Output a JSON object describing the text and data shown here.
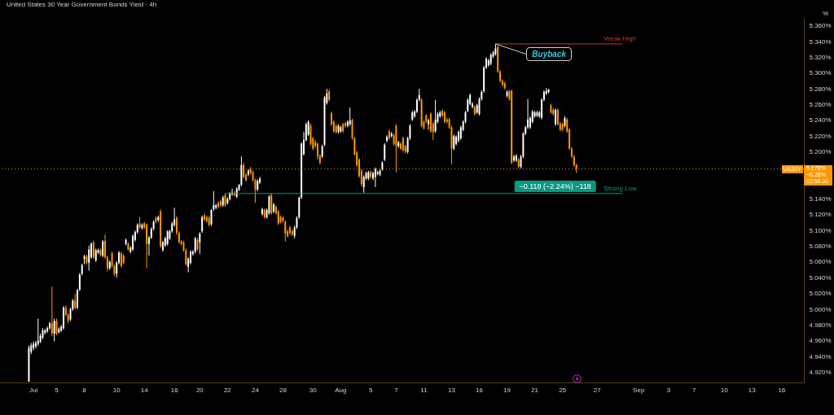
{
  "chart_data": {
    "type": "candlestick",
    "title": "United States 30 Year Government Bonds Yield · 4h",
    "ylabel": "%",
    "categories": [
      null,
      null,
      null,
      null,
      null,
      null,
      null,
      null,
      null,
      null,
      null,
      null,
      null,
      null,
      "Jul",
      null,
      null,
      null,
      null,
      null,
      null,
      null,
      null,
      null,
      "5",
      null,
      null,
      null,
      null,
      null,
      null,
      null,
      null,
      null,
      null,
      null,
      "8",
      null,
      null,
      null,
      null,
      null,
      null,
      null,
      null,
      null,
      null,
      null,
      null,
      null,
      "10",
      null,
      null,
      null,
      null,
      null,
      null,
      null,
      null,
      null,
      null,
      null,
      "14",
      null,
      null,
      null,
      null,
      null,
      null,
      null,
      null,
      null,
      null,
      null,
      null,
      "16",
      null,
      null,
      null,
      null,
      null,
      null,
      null,
      null,
      null,
      null,
      "20",
      null,
      null,
      null,
      null,
      null,
      null,
      null,
      null,
      null,
      null,
      null,
      "22",
      null,
      null,
      null,
      null,
      null,
      null,
      null,
      null,
      null,
      null,
      null,
      "24",
      null,
      null,
      null,
      null,
      null,
      null,
      null,
      null,
      null,
      null,
      null,
      "28",
      null,
      null,
      null,
      null,
      null,
      null,
      null,
      null,
      null,
      null,
      null,
      null,
      "30",
      null,
      null,
      null,
      null,
      null,
      null,
      null,
      null,
      null,
      null,
      null,
      "Aug",
      null,
      null,
      null,
      null,
      null,
      null,
      null,
      null,
      null,
      null,
      null,
      null,
      "5",
      null,
      null,
      null,
      null,
      null,
      null,
      null,
      null,
      null,
      null,
      "7",
      null,
      null,
      null,
      null,
      null,
      null,
      null,
      null,
      null,
      null,
      null,
      "11",
      null,
      null,
      null,
      null,
      null,
      null,
      null,
      null,
      null,
      null,
      null,
      "13",
      null,
      null,
      null,
      null,
      null,
      null,
      null,
      null,
      null,
      null,
      null,
      "16",
      null,
      null,
      null,
      null,
      null,
      null,
      null,
      null,
      null,
      null,
      null,
      "19",
      null,
      null,
      null,
      null,
      null,
      null,
      null,
      null,
      null,
      null,
      null,
      "21",
      null,
      null,
      null,
      null,
      null,
      null,
      null,
      null,
      null,
      null,
      null,
      "25",
      null,
      null,
      null,
      null,
      null,
      null,
      null,
      null,
      null,
      null,
      null,
      null,
      null,
      null,
      "27",
      null,
      null,
      null,
      null,
      null,
      null,
      null,
      null,
      null,
      null,
      null,
      null,
      null,
      null,
      null,
      null,
      null,
      "Sep",
      null,
      null,
      null,
      null,
      null,
      null,
      null,
      null,
      null,
      null,
      null,
      null,
      "3",
      null,
      null,
      null,
      null,
      null,
      null,
      null,
      null,
      null,
      null,
      "7",
      null,
      null,
      null,
      null,
      null,
      null,
      null,
      null,
      null,
      null,
      null,
      null,
      "10",
      null,
      null,
      null,
      null,
      null,
      null,
      null,
      null,
      null,
      null,
      null,
      "13",
      null,
      null,
      null,
      null,
      null,
      null,
      null,
      null,
      null,
      null,
      null,
      null,
      "16",
      null,
      null,
      null,
      null,
      null,
      null,
      null,
      null,
      null
    ],
    "ohlc": [
      null,
      null,
      null,
      null,
      null,
      null,
      null,
      null,
      null,
      null,
      null,
      null,
      [
        4.908,
        4.954,
        4.908,
        4.951
      ],
      [
        4.946,
        4.957,
        4.943,
        4.954
      ],
      [
        4.951,
        4.959,
        4.948,
        4.956
      ],
      [
        4.953,
        4.96,
        4.95,
        4.957
      ],
      [
        4.956,
        4.988,
        4.953,
        4.96
      ],
      [
        4.959,
        4.969,
        4.957,
        4.966
      ],
      [
        4.964,
        4.976,
        4.962,
        4.973
      ],
      [
        4.97,
        4.975,
        4.968,
        4.973
      ],
      [
        4.972,
        4.978,
        4.97,
        4.976
      ],
      [
        4.976,
        4.984,
        4.974,
        4.982
      ],
      [
        4.982,
        5.029,
        4.966,
        4.969
      ],
      [
        4.969,
        4.988,
        4.959,
        4.985
      ],
      [
        4.985,
        4.988,
        4.967,
        4.969
      ],
      [
        4.971,
        4.977,
        4.969,
        4.975
      ],
      [
        4.973,
        4.98,
        4.971,
        4.978
      ],
      [
        4.976,
        5.004,
        4.974,
        5.002
      ],
      [
        5.002,
        5.005,
        4.991,
        4.993
      ],
      [
        4.993,
        4.995,
        4.982,
        4.985
      ],
      [
        4.987,
        5.002,
        4.985,
        5.0
      ],
      [
        5.0,
        5.013,
        4.998,
        5.011
      ],
      [
        5.011,
        5.02,
        5.0,
        5.002
      ],
      [
        5.002,
        5.026,
        5.0,
        5.024
      ],
      [
        5.025,
        5.046,
        5.023,
        5.044
      ],
      [
        5.045,
        5.058,
        5.043,
        5.056
      ],
      [
        5.064,
        5.069,
        5.057,
        5.067
      ],
      [
        5.067,
        5.069,
        5.057,
        5.059
      ],
      [
        5.059,
        5.081,
        5.049,
        5.076
      ],
      [
        5.066,
        5.085,
        5.064,
        5.083
      ],
      [
        5.085,
        5.087,
        5.064,
        5.066
      ],
      [
        5.062,
        5.077,
        5.06,
        5.075
      ],
      [
        5.072,
        5.077,
        5.07,
        5.075
      ],
      [
        5.075,
        5.077,
        5.067,
        5.069
      ],
      [
        5.068,
        5.088,
        5.066,
        5.086
      ],
      [
        5.087,
        5.095,
        5.064,
        5.066
      ],
      [
        5.066,
        5.068,
        5.048,
        5.052
      ],
      [
        5.052,
        5.062,
        5.05,
        5.06
      ],
      [
        5.071,
        5.073,
        5.053,
        5.055
      ],
      [
        5.055,
        5.057,
        5.042,
        5.045
      ],
      [
        5.045,
        5.061,
        5.04,
        5.059
      ],
      [
        5.059,
        5.074,
        5.057,
        5.072
      ],
      [
        5.071,
        5.073,
        5.053,
        5.055
      ],
      [
        5.068,
        5.07,
        5.057,
        5.059
      ],
      [
        5.083,
        5.09,
        5.081,
        5.088
      ],
      [
        5.083,
        5.085,
        5.074,
        5.076
      ],
      [
        5.073,
        5.08,
        5.071,
        5.078
      ],
      [
        5.076,
        5.095,
        5.074,
        5.093
      ],
      [
        5.088,
        5.1,
        5.086,
        5.098
      ],
      [
        5.098,
        5.109,
        5.096,
        5.107
      ],
      [
        5.109,
        5.117,
        5.102,
        5.104
      ],
      [
        5.103,
        5.109,
        5.101,
        5.107
      ],
      [
        5.109,
        5.111,
        5.102,
        5.104
      ],
      [
        5.107,
        5.109,
        5.052,
        5.083
      ],
      [
        5.083,
        5.093,
        5.068,
        5.091
      ],
      [
        5.091,
        5.104,
        5.089,
        5.102
      ],
      [
        5.102,
        5.113,
        5.1,
        5.111
      ],
      [
        5.116,
        5.118,
        5.109,
        5.111
      ],
      [
        5.113,
        5.119,
        5.111,
        5.117
      ],
      [
        5.124,
        5.127,
        5.078,
        5.08
      ],
      [
        5.075,
        5.087,
        5.073,
        5.085
      ],
      [
        5.081,
        5.092,
        5.079,
        5.09
      ],
      [
        5.083,
        5.1,
        5.081,
        5.099
      ],
      [
        5.09,
        5.101,
        5.088,
        5.099
      ],
      [
        5.099,
        5.111,
        5.097,
        5.109
      ],
      [
        5.107,
        5.129,
        5.105,
        5.114
      ],
      [
        5.116,
        5.118,
        5.094,
        5.097
      ],
      [
        5.097,
        5.099,
        5.083,
        5.085
      ],
      [
        5.086,
        5.088,
        5.081,
        5.083
      ],
      [
        5.085,
        5.087,
        5.073,
        5.075
      ],
      [
        5.075,
        5.077,
        5.055,
        5.057
      ],
      [
        5.054,
        5.066,
        5.047,
        5.064
      ],
      [
        5.059,
        5.075,
        5.057,
        5.073
      ],
      [
        5.07,
        5.075,
        5.068,
        5.073
      ],
      [
        5.073,
        5.092,
        5.071,
        5.09
      ],
      [
        5.088,
        5.091,
        5.074,
        5.076
      ],
      [
        5.085,
        5.098,
        5.07,
        5.096
      ],
      [
        5.099,
        5.119,
        5.097,
        5.117
      ],
      [
        5.119,
        5.122,
        5.112,
        5.114
      ],
      [
        5.117,
        5.119,
        5.11,
        5.112
      ],
      [
        5.116,
        5.118,
        5.105,
        5.107
      ],
      [
        5.108,
        5.127,
        5.106,
        5.126
      ],
      [
        5.127,
        5.15,
        5.125,
        5.132
      ],
      [
        5.129,
        5.134,
        5.127,
        5.132
      ],
      [
        5.135,
        5.137,
        5.128,
        5.13
      ],
      [
        5.137,
        5.139,
        5.13,
        5.132
      ],
      [
        5.132,
        5.144,
        5.13,
        5.142
      ],
      [
        5.145,
        5.147,
        5.13,
        5.132
      ],
      [
        5.135,
        5.142,
        5.133,
        5.14
      ],
      [
        5.14,
        5.149,
        5.138,
        5.147
      ],
      [
        5.146,
        5.153,
        5.144,
        5.148
      ],
      [
        5.148,
        5.15,
        5.143,
        5.145
      ],
      [
        5.143,
        5.155,
        5.141,
        5.153
      ],
      [
        5.152,
        5.159,
        5.15,
        5.158
      ],
      [
        5.158,
        5.194,
        5.156,
        5.183
      ],
      [
        5.183,
        5.186,
        5.166,
        5.168
      ],
      [
        5.171,
        5.173,
        5.162,
        5.164
      ],
      [
        5.171,
        5.178,
        5.169,
        5.176
      ],
      [
        5.178,
        5.181,
        5.171,
        5.173
      ],
      [
        5.174,
        5.176,
        5.162,
        5.164
      ],
      [
        5.164,
        5.166,
        5.135,
        5.152
      ],
      [
        5.152,
        5.165,
        5.15,
        5.163
      ],
      [
        5.161,
        5.168,
        5.159,
        5.166
      ],
      [
        5.121,
        5.129,
        5.119,
        5.127
      ],
      [
        5.126,
        5.128,
        5.115,
        5.117
      ],
      [
        5.117,
        5.128,
        5.115,
        5.126
      ],
      [
        5.122,
        5.145,
        5.12,
        5.143
      ],
      [
        5.145,
        5.147,
        5.12,
        5.122
      ],
      [
        5.124,
        5.135,
        5.122,
        5.133
      ],
      [
        5.13,
        5.132,
        5.12,
        5.122
      ],
      [
        5.124,
        5.126,
        5.107,
        5.109
      ],
      [
        5.117,
        5.119,
        5.109,
        5.111
      ],
      [
        5.116,
        5.118,
        5.11,
        5.112
      ],
      [
        5.111,
        5.113,
        5.086,
        5.096
      ],
      [
        5.099,
        5.101,
        5.091,
        5.093
      ],
      [
        5.104,
        5.106,
        5.094,
        5.097
      ],
      [
        5.099,
        5.101,
        5.093,
        5.095
      ],
      [
        5.093,
        5.106,
        5.09,
        5.104
      ],
      [
        5.104,
        5.118,
        5.102,
        5.116
      ],
      [
        5.117,
        5.143,
        5.115,
        5.142
      ],
      [
        5.142,
        5.212,
        5.14,
        5.21
      ],
      [
        5.197,
        5.225,
        5.195,
        5.215
      ],
      [
        5.215,
        5.237,
        5.213,
        5.235
      ],
      [
        5.222,
        5.24,
        5.22,
        5.238
      ],
      [
        5.233,
        5.236,
        5.208,
        5.21
      ],
      [
        5.217,
        5.219,
        5.202,
        5.204
      ],
      [
        5.212,
        5.215,
        5.205,
        5.207
      ],
      [
        5.21,
        5.212,
        5.19,
        5.194
      ],
      [
        5.195,
        5.197,
        5.184,
        5.186
      ],
      [
        5.194,
        5.209,
        5.192,
        5.207
      ],
      [
        5.209,
        5.271,
        5.207,
        5.269
      ],
      [
        5.262,
        5.28,
        5.26,
        5.274
      ],
      [
        5.277,
        5.279,
        5.264,
        5.266
      ],
      [
        5.249,
        5.251,
        5.233,
        5.235
      ],
      [
        5.238,
        5.24,
        5.224,
        5.226
      ],
      [
        5.233,
        5.235,
        5.223,
        5.225
      ],
      [
        5.225,
        5.235,
        5.223,
        5.233
      ],
      [
        5.226,
        5.233,
        5.224,
        5.231
      ],
      [
        5.235,
        5.237,
        5.224,
        5.226
      ],
      [
        5.236,
        5.238,
        5.231,
        5.233
      ],
      [
        5.233,
        5.24,
        5.231,
        5.238
      ],
      [
        5.235,
        5.256,
        5.233,
        5.24
      ],
      [
        5.24,
        5.242,
        5.215,
        5.217
      ],
      [
        5.217,
        5.219,
        5.195,
        5.197
      ],
      [
        5.199,
        5.201,
        5.181,
        5.183
      ],
      [
        5.19,
        5.192,
        5.167,
        5.169
      ],
      [
        5.176,
        5.178,
        5.156,
        5.159
      ],
      [
        5.155,
        5.17,
        5.148,
        5.168
      ],
      [
        5.166,
        5.175,
        5.164,
        5.173
      ],
      [
        5.166,
        5.176,
        5.164,
        5.174
      ],
      [
        5.174,
        5.176,
        5.166,
        5.168
      ],
      [
        5.166,
        5.175,
        5.164,
        5.173
      ],
      [
        5.168,
        5.18,
        5.155,
        5.178
      ],
      [
        5.172,
        5.176,
        5.17,
        5.174
      ],
      [
        5.171,
        5.178,
        5.169,
        5.176
      ],
      [
        5.178,
        5.188,
        5.176,
        5.186
      ],
      [
        5.19,
        5.211,
        5.188,
        5.209
      ],
      [
        5.214,
        5.221,
        5.212,
        5.219
      ],
      [
        5.226,
        5.228,
        5.215,
        5.217
      ],
      [
        5.22,
        5.225,
        5.218,
        5.223
      ],
      [
        5.221,
        5.223,
        5.208,
        5.21
      ],
      [
        5.233,
        5.235,
        5.174,
        5.207
      ],
      [
        5.207,
        5.214,
        5.205,
        5.212
      ],
      [
        5.21,
        5.212,
        5.202,
        5.204
      ],
      [
        5.217,
        5.219,
        5.2,
        5.202
      ],
      [
        5.207,
        5.209,
        5.198,
        5.2
      ],
      [
        5.2,
        5.219,
        5.198,
        5.217
      ],
      [
        5.217,
        5.235,
        5.215,
        5.233
      ],
      [
        5.241,
        5.252,
        5.239,
        5.25
      ],
      [
        5.245,
        5.253,
        5.243,
        5.251
      ],
      [
        5.251,
        5.268,
        5.249,
        5.266
      ],
      [
        5.266,
        5.28,
        5.264,
        5.272
      ],
      [
        5.266,
        5.268,
        5.231,
        5.233
      ],
      [
        5.238,
        5.24,
        5.228,
        5.23
      ],
      [
        5.246,
        5.248,
        5.236,
        5.238
      ],
      [
        5.235,
        5.242,
        5.228,
        5.24
      ],
      [
        5.248,
        5.25,
        5.224,
        5.226
      ],
      [
        5.236,
        5.238,
        5.215,
        5.225
      ],
      [
        5.226,
        5.266,
        5.224,
        5.241
      ],
      [
        5.238,
        5.25,
        5.236,
        5.248
      ],
      [
        5.245,
        5.252,
        5.243,
        5.25
      ],
      [
        5.252,
        5.254,
        5.244,
        5.246
      ],
      [
        5.25,
        5.252,
        5.236,
        5.238
      ],
      [
        5.241,
        5.243,
        5.236,
        5.238
      ],
      [
        5.241,
        5.243,
        5.229,
        5.231
      ],
      [
        5.231,
        5.233,
        5.184,
        5.204
      ],
      [
        5.204,
        5.222,
        5.202,
        5.22
      ],
      [
        5.21,
        5.221,
        5.208,
        5.219
      ],
      [
        5.214,
        5.227,
        5.212,
        5.225
      ],
      [
        5.217,
        5.233,
        5.215,
        5.231
      ],
      [
        5.228,
        5.24,
        5.226,
        5.238
      ],
      [
        5.238,
        5.252,
        5.236,
        5.25
      ],
      [
        5.252,
        5.268,
        5.25,
        5.266
      ],
      [
        5.261,
        5.274,
        5.259,
        5.272
      ],
      [
        5.257,
        5.263,
        5.255,
        5.261
      ],
      [
        5.257,
        5.259,
        5.246,
        5.248
      ],
      [
        5.25,
        5.261,
        5.248,
        5.259
      ],
      [
        5.248,
        5.269,
        5.246,
        5.267
      ],
      [
        5.267,
        5.278,
        5.265,
        5.276
      ],
      [
        5.277,
        5.309,
        5.275,
        5.307
      ],
      [
        5.307,
        5.32,
        5.305,
        5.318
      ],
      [
        5.31,
        5.318,
        5.308,
        5.316
      ],
      [
        5.312,
        5.325,
        5.31,
        5.323
      ],
      [
        5.321,
        5.328,
        5.319,
        5.326
      ],
      [
        5.324,
        5.337,
        5.322,
        5.331
      ],
      [
        5.333,
        5.335,
        5.3,
        5.302
      ],
      [
        5.302,
        5.304,
        5.288,
        5.29
      ],
      [
        5.29,
        5.292,
        5.283,
        5.285
      ],
      [
        5.287,
        5.289,
        5.279,
        5.281
      ],
      [
        5.271,
        5.278,
        5.269,
        5.276
      ],
      [
        5.277,
        5.279,
        5.265,
        5.267
      ],
      [
        5.277,
        5.279,
        5.184,
        5.186
      ],
      [
        5.189,
        5.196,
        5.187,
        5.194
      ],
      [
        5.189,
        5.197,
        5.187,
        5.195
      ],
      [
        5.19,
        5.192,
        5.179,
        5.181
      ],
      [
        5.181,
        5.196,
        5.179,
        5.194
      ],
      [
        5.194,
        5.225,
        5.192,
        5.223
      ],
      [
        5.223,
        5.233,
        5.221,
        5.231
      ],
      [
        5.231,
        5.267,
        5.229,
        5.241
      ],
      [
        5.231,
        5.245,
        5.229,
        5.243
      ],
      [
        5.238,
        5.253,
        5.236,
        5.251
      ],
      [
        5.245,
        5.252,
        5.243,
        5.25
      ],
      [
        5.246,
        5.252,
        5.244,
        5.25
      ],
      [
        5.245,
        5.252,
        5.243,
        5.25
      ],
      [
        5.243,
        5.268,
        5.241,
        5.266
      ],
      [
        5.266,
        5.278,
        5.264,
        5.276
      ],
      [
        5.274,
        5.281,
        5.272,
        5.277
      ],
      [
        5.276,
        5.28,
        5.274,
        5.279
      ],
      [
        5.259,
        5.261,
        5.248,
        5.25
      ],
      [
        5.253,
        5.255,
        5.246,
        5.248
      ],
      [
        5.235,
        5.255,
        5.233,
        5.253
      ],
      [
        5.253,
        5.255,
        5.233,
        5.235
      ],
      [
        5.236,
        5.238,
        5.226,
        5.228
      ],
      [
        5.235,
        5.237,
        5.226,
        5.228
      ],
      [
        5.233,
        5.245,
        5.231,
        5.243
      ],
      [
        5.241,
        5.243,
        5.224,
        5.226
      ],
      [
        5.228,
        5.23,
        5.202,
        5.204
      ],
      [
        5.204,
        5.206,
        5.192,
        5.194
      ],
      [
        5.194,
        5.196,
        5.181,
        5.183
      ],
      [
        5.183,
        5.185,
        5.173,
        5.178
      ],
      null,
      null,
      null,
      null,
      null,
      null,
      null,
      null,
      null,
      null,
      null,
      null,
      null,
      null,
      null,
      null,
      null,
      null,
      null,
      null,
      null,
      null,
      null,
      null,
      null,
      null,
      null,
      null,
      null,
      null,
      null,
      null,
      null,
      null,
      null,
      null,
      null,
      null,
      null,
      null,
      null,
      null,
      null,
      null,
      null,
      null,
      null,
      null,
      null,
      null,
      null,
      null,
      null,
      null,
      null,
      null,
      null,
      null,
      null,
      null,
      null,
      null,
      null,
      null,
      null,
      null,
      null,
      null,
      null,
      null,
      null,
      null,
      null,
      null,
      null,
      null,
      null,
      null,
      null,
      null,
      null,
      null,
      null,
      null,
      null,
      null,
      null,
      null,
      null,
      null,
      null,
      null,
      null,
      null,
      null,
      null,
      null,
      null
    ],
    "colors": [
      null,
      null,
      null,
      null,
      null,
      null,
      null,
      null,
      null,
      null,
      null,
      null,
      "#ffffff",
      "#ffffff",
      "#ffffff",
      "#ffffff",
      "#ffffff",
      "#ffffff",
      "#ffffff",
      "#ffffff",
      "#ffffff",
      "#ffffff",
      "#ff9800",
      "#ffffff",
      "#ff9800",
      "#ffffff",
      "#ffffff",
      "#ffffff",
      "#ff9800",
      "#ff9800",
      "#ffffff",
      "#ffffff",
      "#ff9800",
      "#ffffff",
      "#ffffff",
      "#ffffff",
      "#ffffff",
      "#ff9800",
      "#ffffff",
      "#ffffff",
      "#ff9800",
      "#ffffff",
      "#ffffff",
      "#ff9800",
      "#ffffff",
      "#ff9800",
      "#ff9800",
      "#ffffff",
      "#ff9800",
      "#ff9800",
      "#ffffff",
      "#ffffff",
      "#ff9800",
      "#ff9800",
      "#ffffff",
      "#ff9800",
      "#ffffff",
      "#ffffff",
      "#ffffff",
      "#ffffff",
      "#ff9800",
      "#ffffff",
      "#ff9800",
      "#ff9800",
      "#ffffff",
      "#ffffff",
      "#ffffff",
      "#ff9800",
      "#ffffff",
      "#ff9800",
      "#ffffff",
      "#ffffff",
      "#ffffff",
      "#ffffff",
      "#ffffff",
      "#ffffff",
      "#ff9800",
      "#ff9800",
      "#ff9800",
      "#ff9800",
      "#ff9800",
      "#ffffff",
      "#ffffff",
      "#ffffff",
      "#ffffff",
      "#ff9800",
      "#ffffff",
      "#ffffff",
      "#ff9800",
      "#ff9800",
      "#ff9800",
      "#ffffff",
      "#ffffff",
      "#ffffff",
      "#ff9800",
      "#ff9800",
      "#ffffff",
      "#ff9800",
      "#ffffff",
      "#ffffff",
      "#ffffff",
      "#ff9800",
      "#ffffff",
      "#ffffff",
      "#ffffff",
      "#ff9800",
      "#ff9800",
      "#ffffff",
      "#ff9800",
      "#ff9800",
      "#ff9800",
      "#ffffff",
      "#ffffff",
      "#ffffff",
      "#ff9800",
      "#ffffff",
      "#ffffff",
      "#ff9800",
      "#ffffff",
      "#ff9800",
      "#ff9800",
      "#ff9800",
      "#ff9800",
      "#ff9800",
      "#ff9800",
      "#ff9800",
      "#ff9800",
      "#ffffff",
      "#ffffff",
      "#ffffff",
      "#ffffff",
      "#ffffff",
      "#ffffff",
      "#ffffff",
      "#ff9800",
      "#ff9800",
      "#ff9800",
      "#ff9800",
      "#ff9800",
      "#ffffff",
      "#ffffff",
      "#ffffff",
      "#ff9800",
      "#ff9800",
      "#ff9800",
      "#ff9800",
      "#ffffff",
      "#ffffff",
      "#ff9800",
      "#ff9800",
      "#ffffff",
      "#ffffff",
      "#ff9800",
      "#ff9800",
      "#ff9800",
      "#ff9800",
      "#ff9800",
      "#ffffff",
      "#ffffff",
      "#ffffff",
      "#ff9800",
      "#ffffff",
      "#ffffff",
      "#ffffff",
      "#ffffff",
      "#ffffff",
      "#ffffff",
      "#ffffff",
      "#ff9800",
      "#ffffff",
      "#ff9800",
      "#ff9800",
      "#ffffff",
      "#ff9800",
      "#ff9800",
      "#ff9800",
      "#ffffff",
      "#ffffff",
      "#ffffff",
      "#ffffff",
      "#ffffff",
      "#ffffff",
      "#ff9800",
      "#ff9800",
      "#ff9800",
      "#ffffff",
      "#ff9800",
      "#ff9800",
      "#ffffff",
      "#ffffff",
      "#ffffff",
      "#ff9800",
      "#ff9800",
      "#ff9800",
      "#ff9800",
      "#ff9800",
      "#ffffff",
      "#ffffff",
      "#ffffff",
      "#ffffff",
      "#ffffff",
      "#ffffff",
      "#ffffff",
      "#ffffff",
      "#ffffff",
      "#ff9800",
      "#ffffff",
      "#ffffff",
      "#ffffff",
      "#ffffff",
      "#ffffff",
      "#ffffff",
      "#ffffff",
      "#ffffff",
      "#ffffff",
      "#ff9800",
      "#ff9800",
      "#ff9800",
      "#ff9800",
      "#ffffff",
      "#ff9800",
      "#ff9800",
      "#ffffff",
      "#ffffff",
      "#ff9800",
      "#ffffff",
      "#ffffff",
      "#ffffff",
      "#ffffff",
      "#ffffff",
      "#ffffff",
      "#ffffff",
      "#ffffff",
      "#ffffff",
      "#ffffff",
      "#ffffff",
      "#ffffff",
      "#ffffff",
      "#ff9800",
      "#ff9800",
      "#ffffff",
      "#ff9800",
      "#ff9800",
      "#ff9800",
      "#ffffff",
      "#ff9800",
      "#ff9800",
      "#ff9800",
      "#ff9800",
      "#ff9800",
      null,
      null,
      null,
      null,
      null,
      null,
      null,
      null,
      null,
      null,
      null,
      null,
      null,
      null,
      null,
      null,
      null,
      null,
      null,
      null,
      null,
      null,
      null,
      null,
      null,
      null,
      null,
      null,
      null,
      null,
      null,
      null,
      null,
      null,
      null,
      null,
      null,
      null,
      null,
      null,
      null,
      null,
      null,
      null,
      null,
      null,
      null,
      null,
      null,
      null,
      null,
      null,
      null,
      null,
      null,
      null,
      null,
      null,
      null,
      null,
      null,
      null,
      null,
      null,
      null,
      null,
      null,
      null,
      null,
      null,
      null,
      null,
      null,
      null,
      null,
      null,
      null,
      null,
      null,
      null,
      null,
      null,
      null,
      null,
      null,
      null,
      null,
      null,
      null,
      null,
      null,
      null,
      null,
      null,
      null,
      null,
      null,
      null
    ],
    "ylim": [
      4.907,
      5.37
    ],
    "yticks": [
      {
        "value": 4.92,
        "label": "4.920%"
      },
      {
        "value": 4.94,
        "label": "4.940%"
      },
      {
        "value": 4.96,
        "label": "4.960%"
      },
      {
        "value": 4.98,
        "label": "4.980%"
      },
      {
        "value": 5.0,
        "label": "5.000%"
      },
      {
        "value": 5.02,
        "label": "5.020%"
      },
      {
        "value": 5.04,
        "label": "5.040%"
      },
      {
        "value": 5.06,
        "label": "5.060%"
      },
      {
        "value": 5.08,
        "label": "5.080%"
      },
      {
        "value": 5.1,
        "label": "5.100%"
      },
      {
        "value": 5.12,
        "label": "5.120%"
      },
      {
        "value": 5.14,
        "label": "5.140%"
      },
      {
        "value": 5.2,
        "label": "5.200%"
      },
      {
        "value": 5.22,
        "label": "5.220%"
      },
      {
        "value": 5.24,
        "label": "5.240%"
      },
      {
        "value": 5.26,
        "label": "5.260%"
      },
      {
        "value": 5.28,
        "label": "5.280%"
      },
      {
        "value": 5.3,
        "label": "5.300%"
      },
      {
        "value": 5.32,
        "label": "5.320%"
      },
      {
        "value": 5.34,
        "label": "5.340%"
      },
      {
        "value": 5.36,
        "label": "5.360%"
      }
    ],
    "ref_lines": [
      {
        "axis": "y",
        "value": 5.178,
        "label": "US30Y",
        "color": "#ff9800",
        "line_style": "dotted"
      },
      {
        "axis": "y",
        "value": 5.337,
        "label": "Weak High",
        "color": "#d1323e"
      },
      {
        "axis": "y",
        "value": 5.147,
        "label": "Strong Low",
        "color": "#089981"
      }
    ],
    "annotations": [
      {
        "text": "Buyback",
        "y": 5.337
      },
      "−0.118 (−2.24%) −118",
      "5.178%",
      "−6.28%",
      "02:55:30"
    ]
  }
}
